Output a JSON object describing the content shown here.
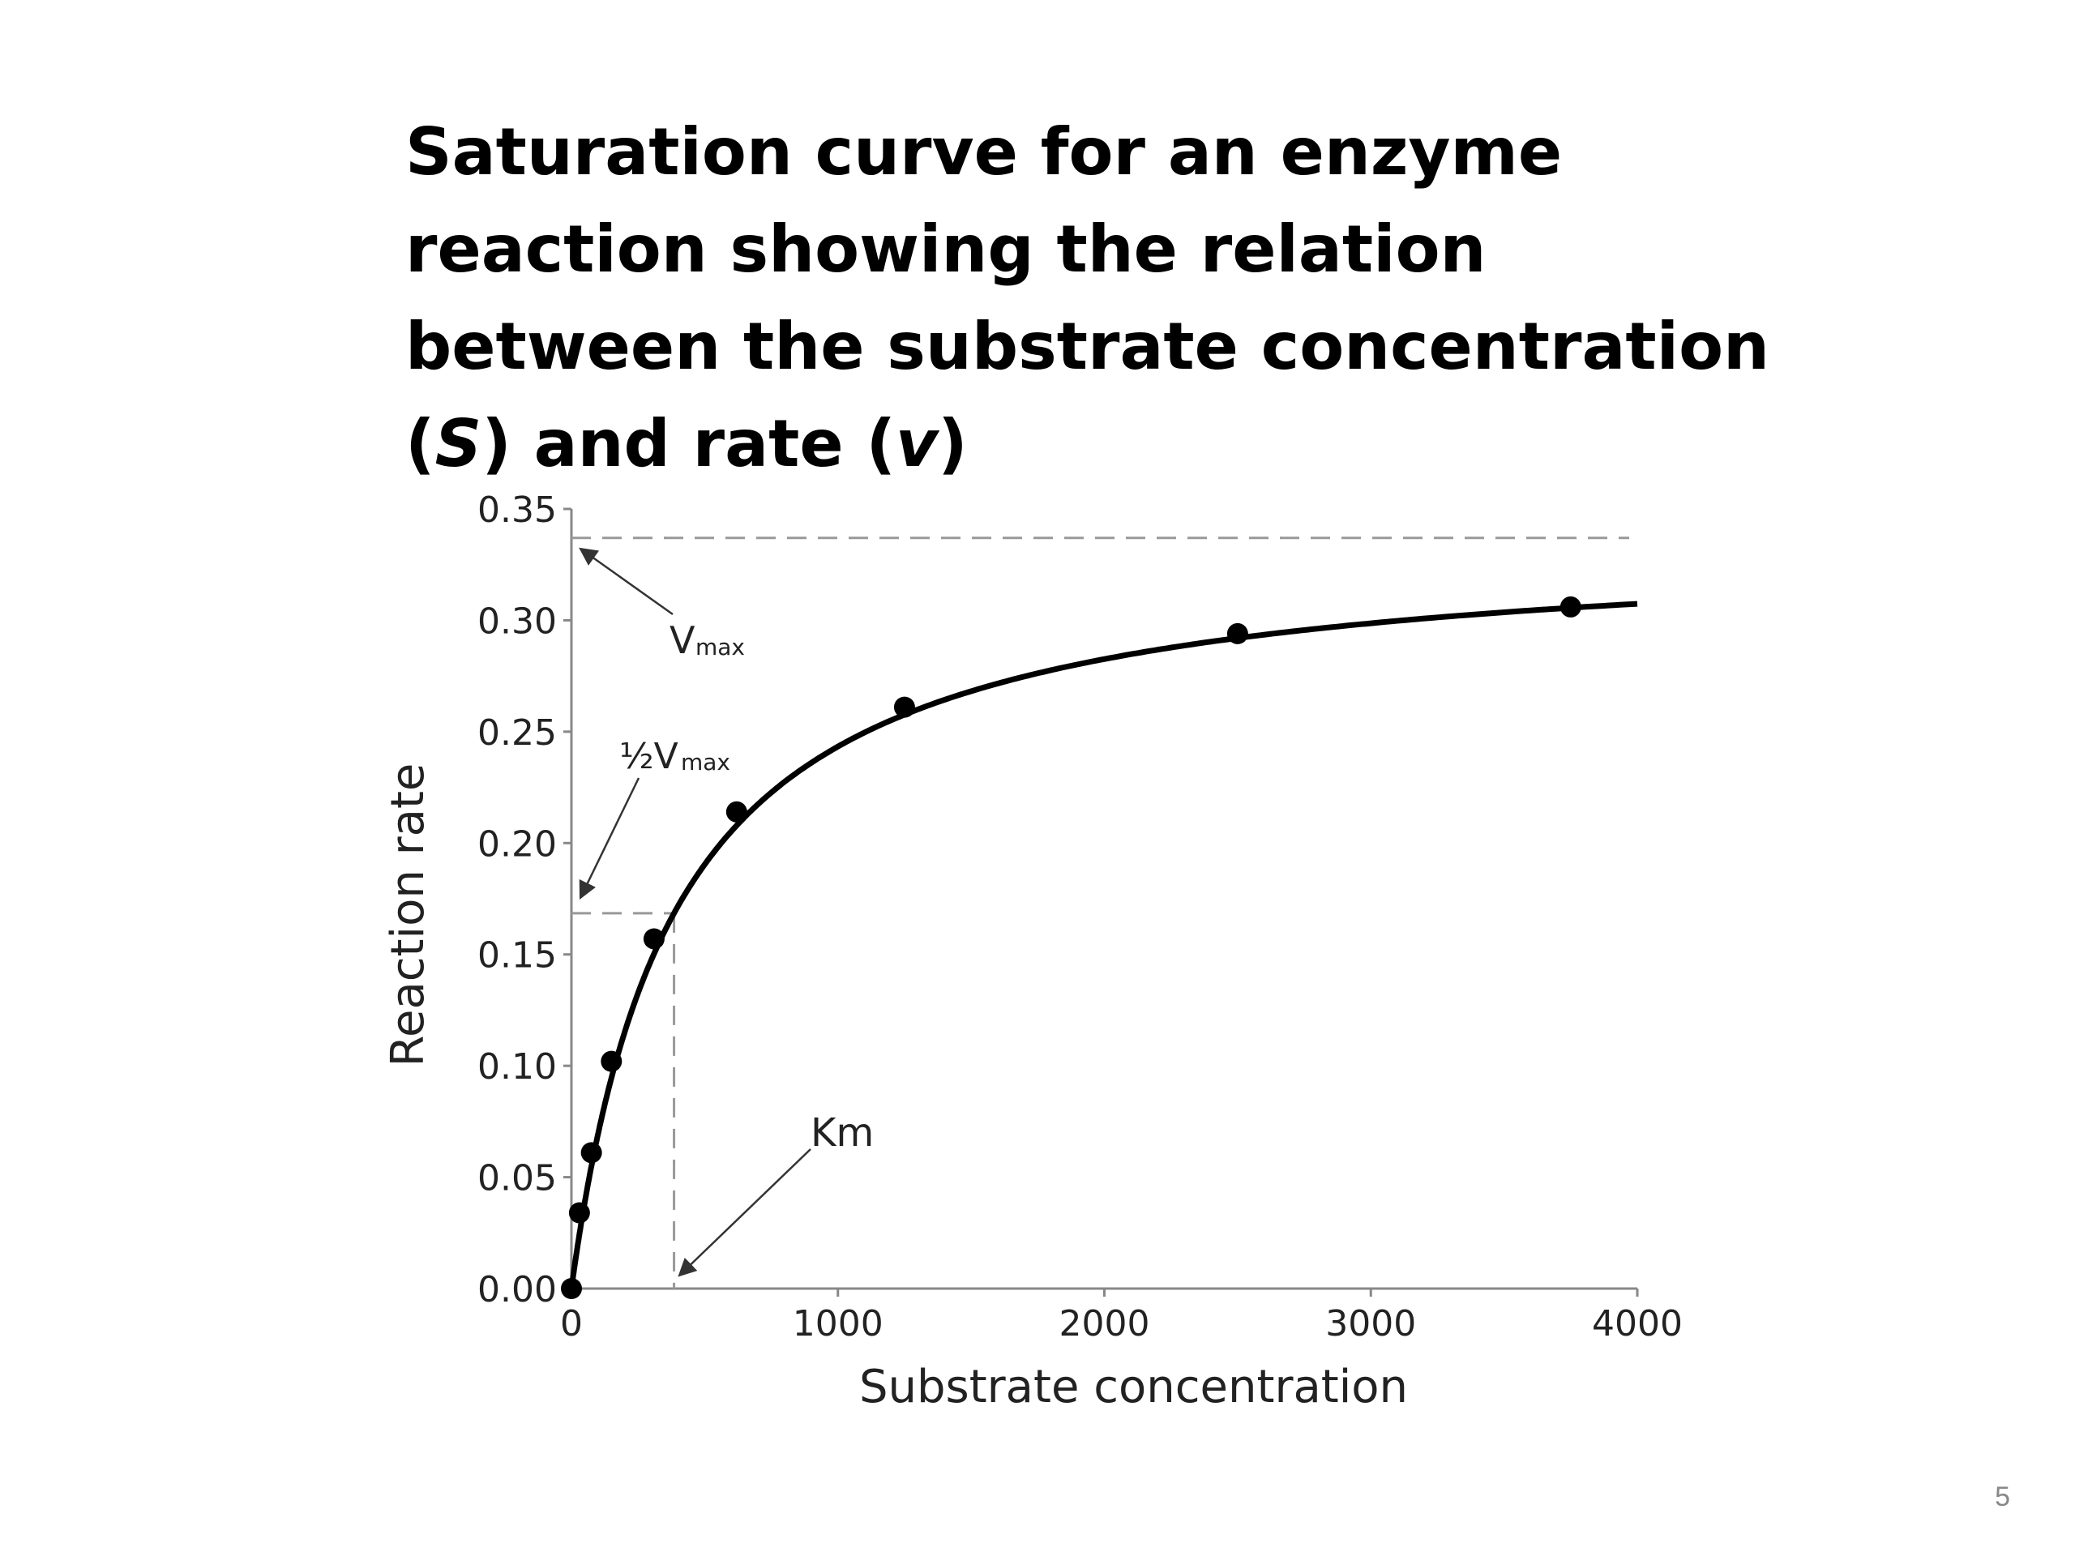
{
  "slide": {
    "title_lines": [
      "Saturation curve for an enzyme",
      "reaction showing the relation",
      "between the substrate concentration",
      "(S) and rate (v)"
    ],
    "page_number": "5"
  },
  "chart_data": {
    "type": "scatter",
    "title": "",
    "xlabel": "Substrate concentration",
    "ylabel": "Reaction rate",
    "xlim": [
      0,
      4000
    ],
    "ylim": [
      0,
      0.35
    ],
    "x_ticks": [
      "0",
      "1000",
      "2000",
      "3000",
      "4000"
    ],
    "y_ticks": [
      "0.00",
      "0.05",
      "0.10",
      "0.15",
      "0.20",
      "0.25",
      "0.30",
      "0.35"
    ],
    "grid": false,
    "vmax": 0.337,
    "km": 385,
    "points": [
      {
        "x": 0,
        "y": 0.0
      },
      {
        "x": 30,
        "y": 0.034
      },
      {
        "x": 75,
        "y": 0.061
      },
      {
        "x": 150,
        "y": 0.102
      },
      {
        "x": 310,
        "y": 0.157
      },
      {
        "x": 620,
        "y": 0.214
      },
      {
        "x": 1250,
        "y": 0.261
      },
      {
        "x": 2500,
        "y": 0.294
      },
      {
        "x": 3750,
        "y": 0.306
      }
    ],
    "annotations": {
      "vmax_label": "V",
      "vmax_sub": "max",
      "half_vmax_label": "½V",
      "half_vmax_sub": "max",
      "km_label": "Km"
    },
    "colors": {
      "curve": "#000000",
      "axis": "#888888",
      "dashed": "#999999"
    }
  }
}
